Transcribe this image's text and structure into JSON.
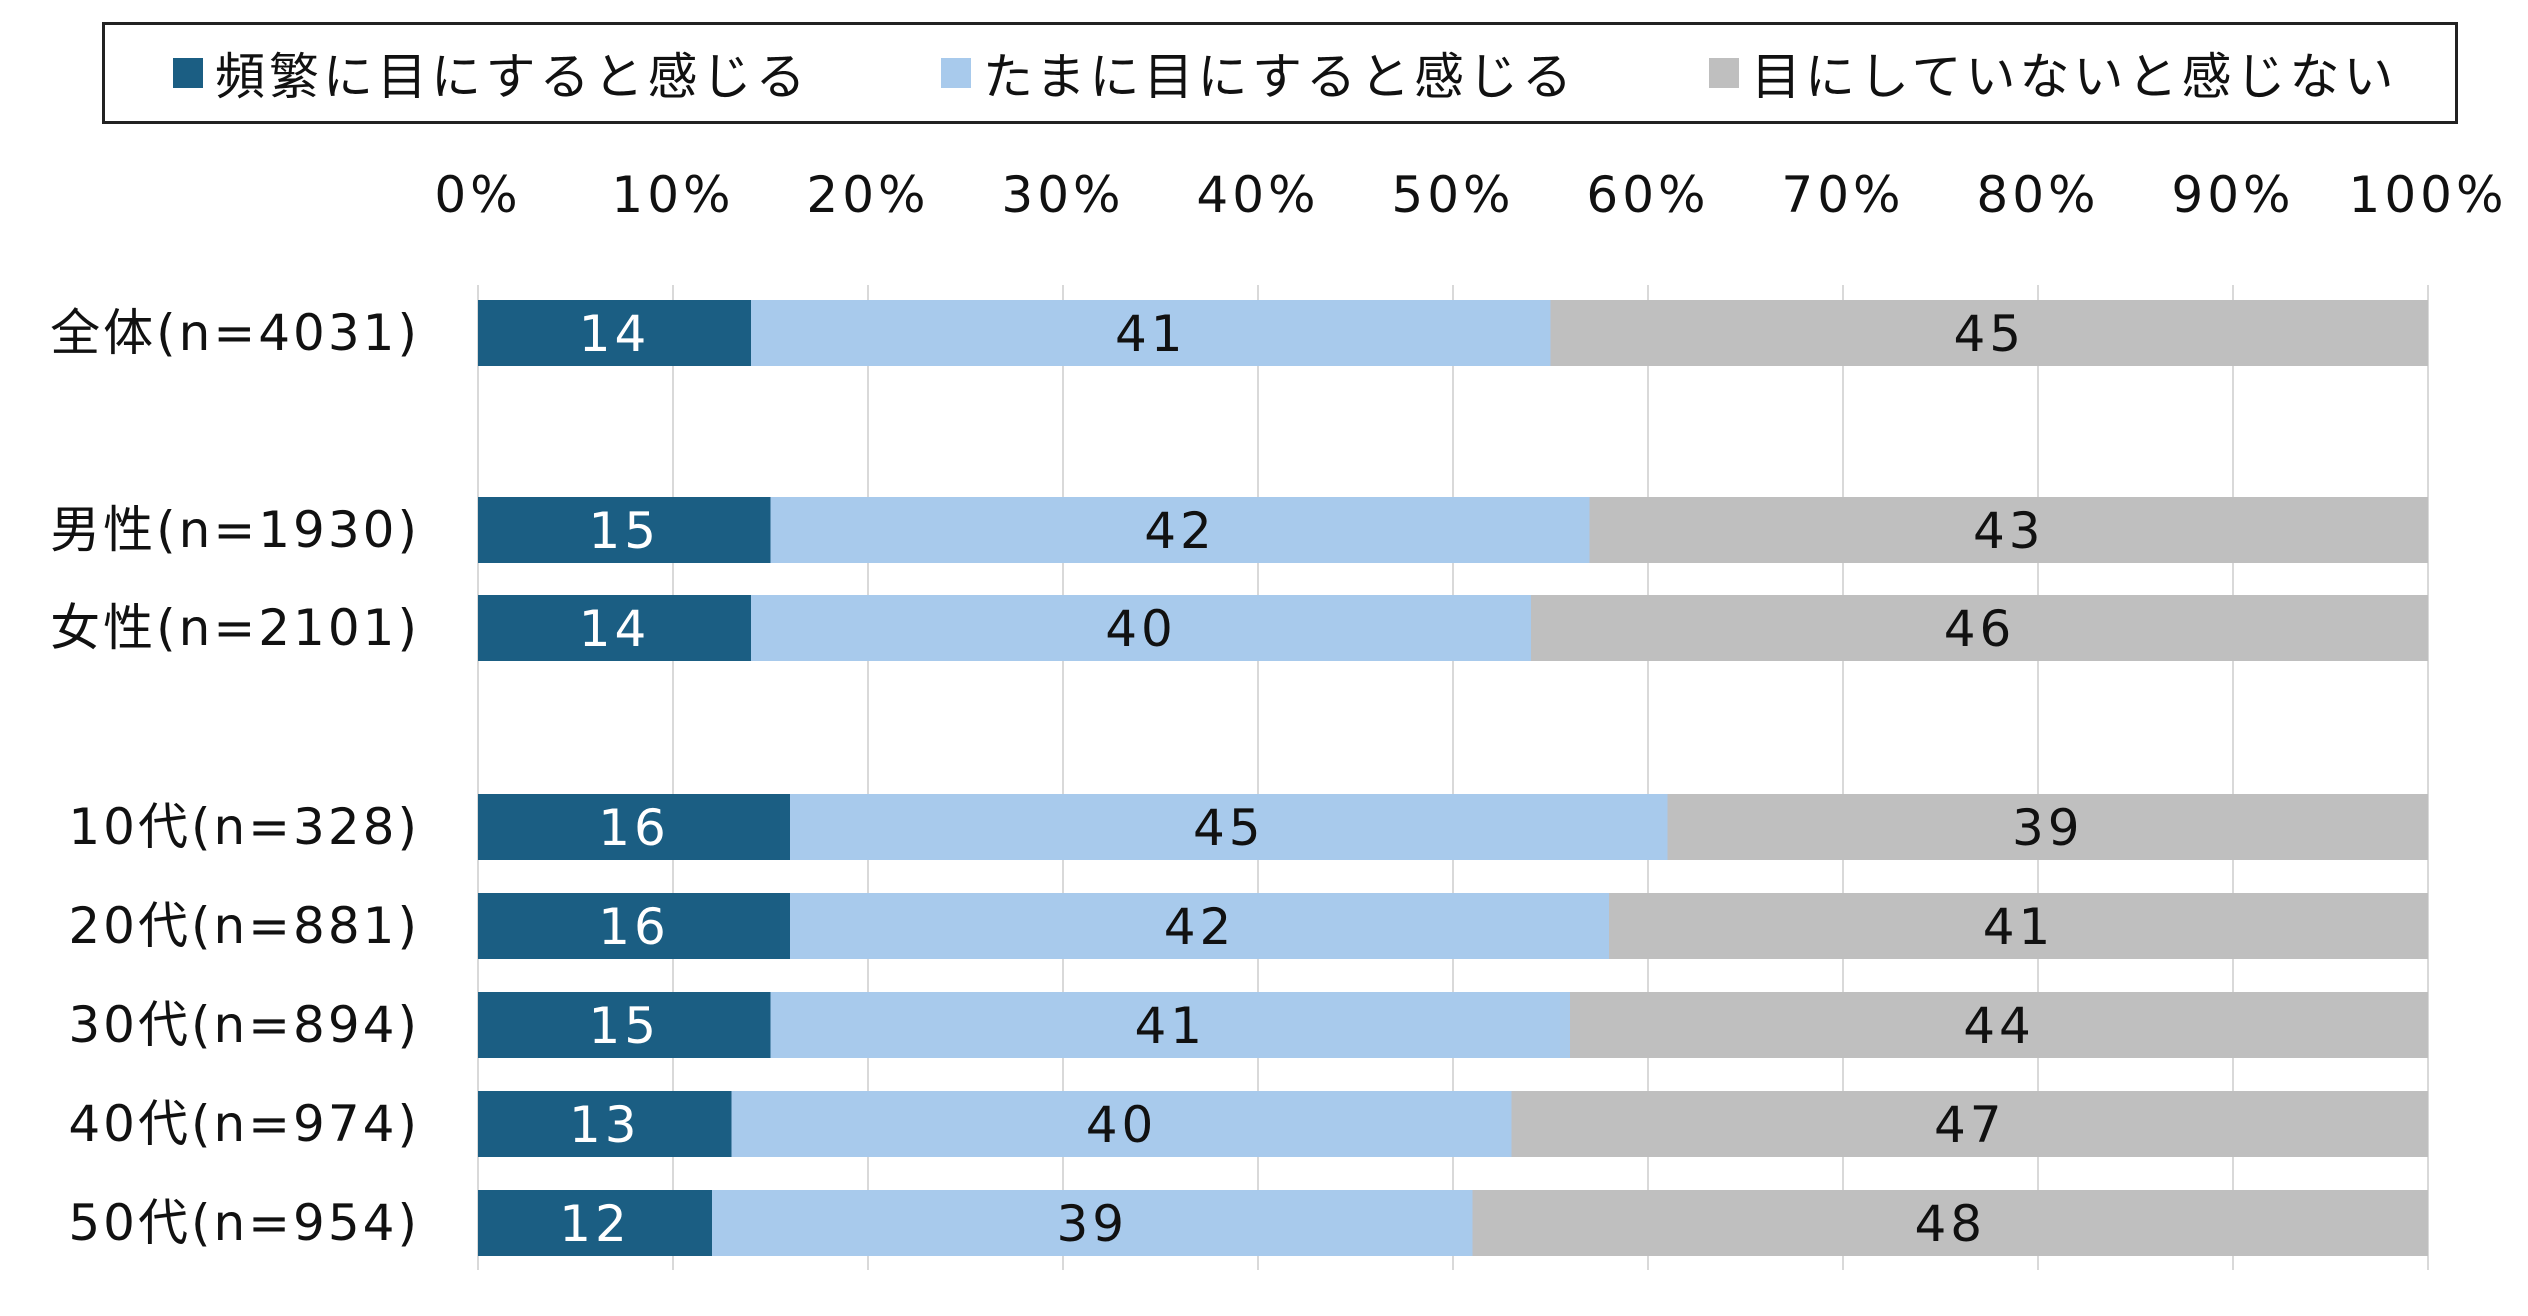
{
  "chart_data": {
    "type": "bar",
    "orientation": "horizontal",
    "stacked": true,
    "categories": [
      "全体(n=4031)",
      "男性(n=1930)",
      "女性(n=2101)",
      "10代(n=328)",
      "20代(n=881)",
      "30代(n=894)",
      "40代(n=974)",
      "50代(n=954)"
    ],
    "series": [
      {
        "name": "頻繁に目にすると感じる",
        "color": "#1b5e83",
        "label_color": "#ffffff",
        "values": [
          14,
          15,
          14,
          16,
          16,
          15,
          13,
          12
        ]
      },
      {
        "name": "たまに目にすると感じる",
        "color": "#a8caec",
        "label_color": "#111111",
        "values": [
          41,
          42,
          40,
          45,
          42,
          41,
          40,
          39
        ]
      },
      {
        "name": "目にしていないと感じない",
        "color": "#bfbfbf",
        "label_color": "#111111",
        "values": [
          45,
          43,
          46,
          39,
          41,
          44,
          47,
          48
        ]
      }
    ],
    "xlim": [
      0,
      100
    ],
    "x_ticks": [
      "0%",
      "10%",
      "20%",
      "30%",
      "40%",
      "50%",
      "60%",
      "70%",
      "80%",
      "90%",
      "100%"
    ],
    "grid": true,
    "legend_position": "top"
  }
}
